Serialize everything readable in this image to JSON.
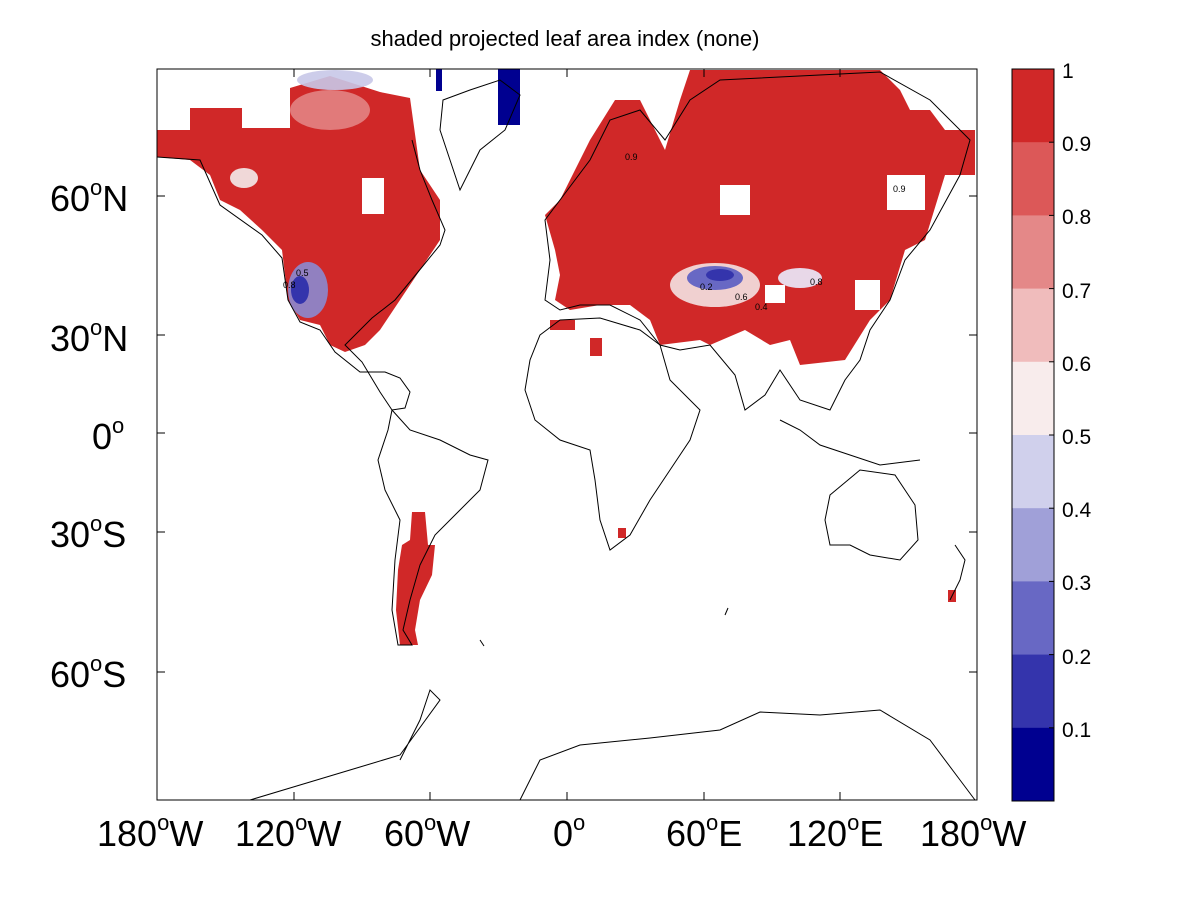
{
  "title": "shaded projected leaf area index (none)",
  "map": {
    "projection": "mercator",
    "lon_range": [
      -180,
      180
    ],
    "lat_range": [
      -80,
      85
    ],
    "y_ticks": [
      {
        "deg": "60",
        "hem": "N"
      },
      {
        "deg": "30",
        "hem": "N"
      },
      {
        "deg": "0",
        "hem": ""
      },
      {
        "deg": "30",
        "hem": "S"
      },
      {
        "deg": "60",
        "hem": "S"
      }
    ],
    "x_ticks": [
      {
        "deg": "180",
        "hem": "W"
      },
      {
        "deg": "120",
        "hem": "W"
      },
      {
        "deg": "60",
        "hem": "W"
      },
      {
        "deg": "0",
        "hem": ""
      },
      {
        "deg": "60",
        "hem": "E"
      },
      {
        "deg": "120",
        "hem": "E"
      },
      {
        "deg": "180",
        "hem": "W"
      }
    ]
  },
  "colorbar": {
    "labels": [
      "1",
      "0.9",
      "0.8",
      "0.7",
      "0.6",
      "0.5",
      "0.4",
      "0.3",
      "0.2",
      "0.1"
    ],
    "colors": [
      "#d02828",
      "#dc5858",
      "#e48888",
      "#f0bcbc",
      "#f8ecec",
      "#d0d0ec",
      "#a0a0d8",
      "#6868c4",
      "#3434ac",
      "#000090"
    ]
  },
  "contour_labels": [
    "0.9",
    "0.8",
    "0.5",
    "0.6",
    "0.4",
    "0.2",
    "0.8",
    "0.9"
  ]
}
